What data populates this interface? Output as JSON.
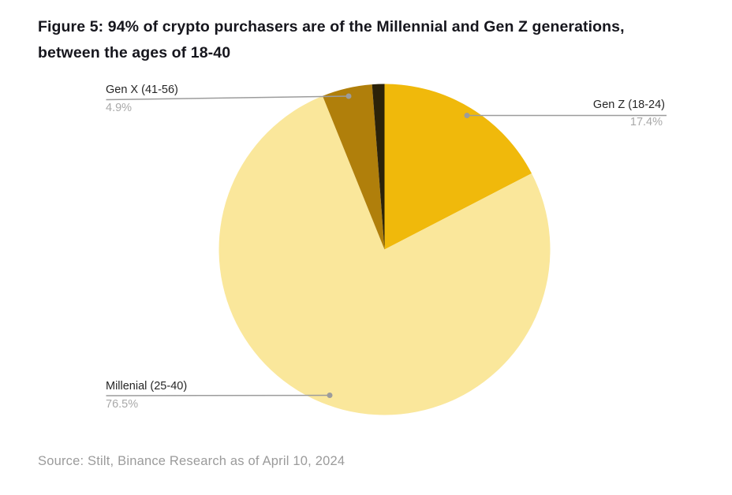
{
  "header": {
    "title_line1": "Figure 5: 94% of crypto purchasers are of the Millennial and Gen Z generations,",
    "title_line2": "between the ages of 18-40"
  },
  "chart_data": {
    "type": "pie",
    "title": "Figure 5: 94% of crypto purchasers are of the Millennial and Gen Z generations, between the ages of 18-40",
    "start_angle": "12-oclock-clockwise",
    "legend_position": "callout-labels",
    "slices": [
      {
        "id": "gen-z",
        "label": "Gen Z (18-24)",
        "value": 17.4,
        "pct": "17.4%",
        "color": "#F0B90B"
      },
      {
        "id": "millennial",
        "label": "Millenial (25-40)",
        "value": 76.5,
        "pct": "76.5%",
        "color": "#FAE79B"
      },
      {
        "id": "gen-x",
        "label": "Gen X (41-56)",
        "value": 4.9,
        "pct": "4.9%",
        "color": "#B07F0B"
      },
      {
        "id": "other",
        "label": "",
        "value": 1.2,
        "pct": "",
        "color": "#2B2209"
      }
    ],
    "style": {
      "leader_line_color": "#9c9c9c",
      "label_text_color": "#262626",
      "pct_text_color": "#a9a9a9"
    }
  },
  "footer": {
    "source": "Source: Stilt, Binance Research as of April 10, 2024"
  }
}
